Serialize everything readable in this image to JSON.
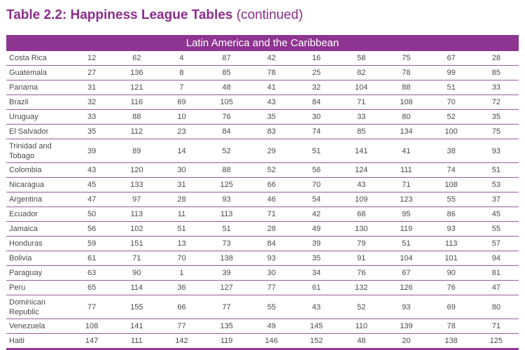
{
  "title": {
    "bold": "Table 2.2: Happiness League Tables",
    "light": "(continued)"
  },
  "section": {
    "label": "Latin America and the Caribbean"
  },
  "rows": [
    {
      "country": "Costa Rica",
      "values": [
        12,
        62,
        4,
        87,
        42,
        16,
        58,
        75,
        67,
        28
      ]
    },
    {
      "country": "Guatemala",
      "values": [
        27,
        136,
        8,
        85,
        78,
        25,
        82,
        78,
        99,
        85
      ]
    },
    {
      "country": "Panama",
      "values": [
        31,
        121,
        7,
        48,
        41,
        32,
        104,
        88,
        51,
        33
      ]
    },
    {
      "country": "Brazil",
      "values": [
        32,
        116,
        69,
        105,
        43,
        84,
        71,
        108,
        70,
        72
      ]
    },
    {
      "country": "Uruguay",
      "values": [
        33,
        88,
        10,
        76,
        35,
        30,
        33,
        80,
        52,
        35
      ]
    },
    {
      "country": "El Salvador",
      "values": [
        35,
        112,
        23,
        84,
        83,
        74,
        85,
        134,
        100,
        75
      ]
    },
    {
      "country": "Trinidad and Tobago",
      "values": [
        39,
        89,
        14,
        52,
        29,
        51,
        141,
        41,
        38,
        93
      ]
    },
    {
      "country": "Colombia",
      "values": [
        43,
        120,
        30,
        88,
        52,
        56,
        124,
        111,
        74,
        51
      ]
    },
    {
      "country": "Nicaragua",
      "values": [
        45,
        133,
        31,
        125,
        66,
        70,
        43,
        71,
        108,
        53
      ]
    },
    {
      "country": "Argentina",
      "values": [
        47,
        97,
        28,
        93,
        46,
        54,
        109,
        123,
        55,
        37
      ]
    },
    {
      "country": "Ecuador",
      "values": [
        50,
        113,
        11,
        113,
        71,
        42,
        68,
        95,
        86,
        45
      ]
    },
    {
      "country": "Jamaica",
      "values": [
        56,
        102,
        51,
        51,
        28,
        49,
        130,
        119,
        93,
        55
      ]
    },
    {
      "country": "Honduras",
      "values": [
        59,
        151,
        13,
        73,
        84,
        39,
        79,
        51,
        113,
        57
      ]
    },
    {
      "country": "Bolivia",
      "values": [
        61,
        71,
        70,
        138,
        93,
        35,
        91,
        104,
        101,
        94
      ]
    },
    {
      "country": "Paraguay",
      "values": [
        63,
        90,
        1,
        39,
        30,
        34,
        76,
        67,
        90,
        81
      ]
    },
    {
      "country": "Peru",
      "values": [
        65,
        114,
        36,
        127,
        77,
        61,
        132,
        126,
        76,
        47
      ]
    },
    {
      "country": "Dominican Republic",
      "values": [
        77,
        155,
        66,
        77,
        55,
        43,
        52,
        93,
        69,
        80
      ]
    },
    {
      "country": "Venezuela",
      "values": [
        108,
        141,
        77,
        135,
        49,
        145,
        110,
        139,
        78,
        71
      ]
    },
    {
      "country": "Haiti",
      "values": [
        147,
        111,
        142,
        119,
        146,
        152,
        48,
        20,
        138,
        125
      ]
    }
  ],
  "colors": {
    "accent": "#8e3591",
    "title": "#8a2d8a",
    "text": "#4a4a4a"
  }
}
